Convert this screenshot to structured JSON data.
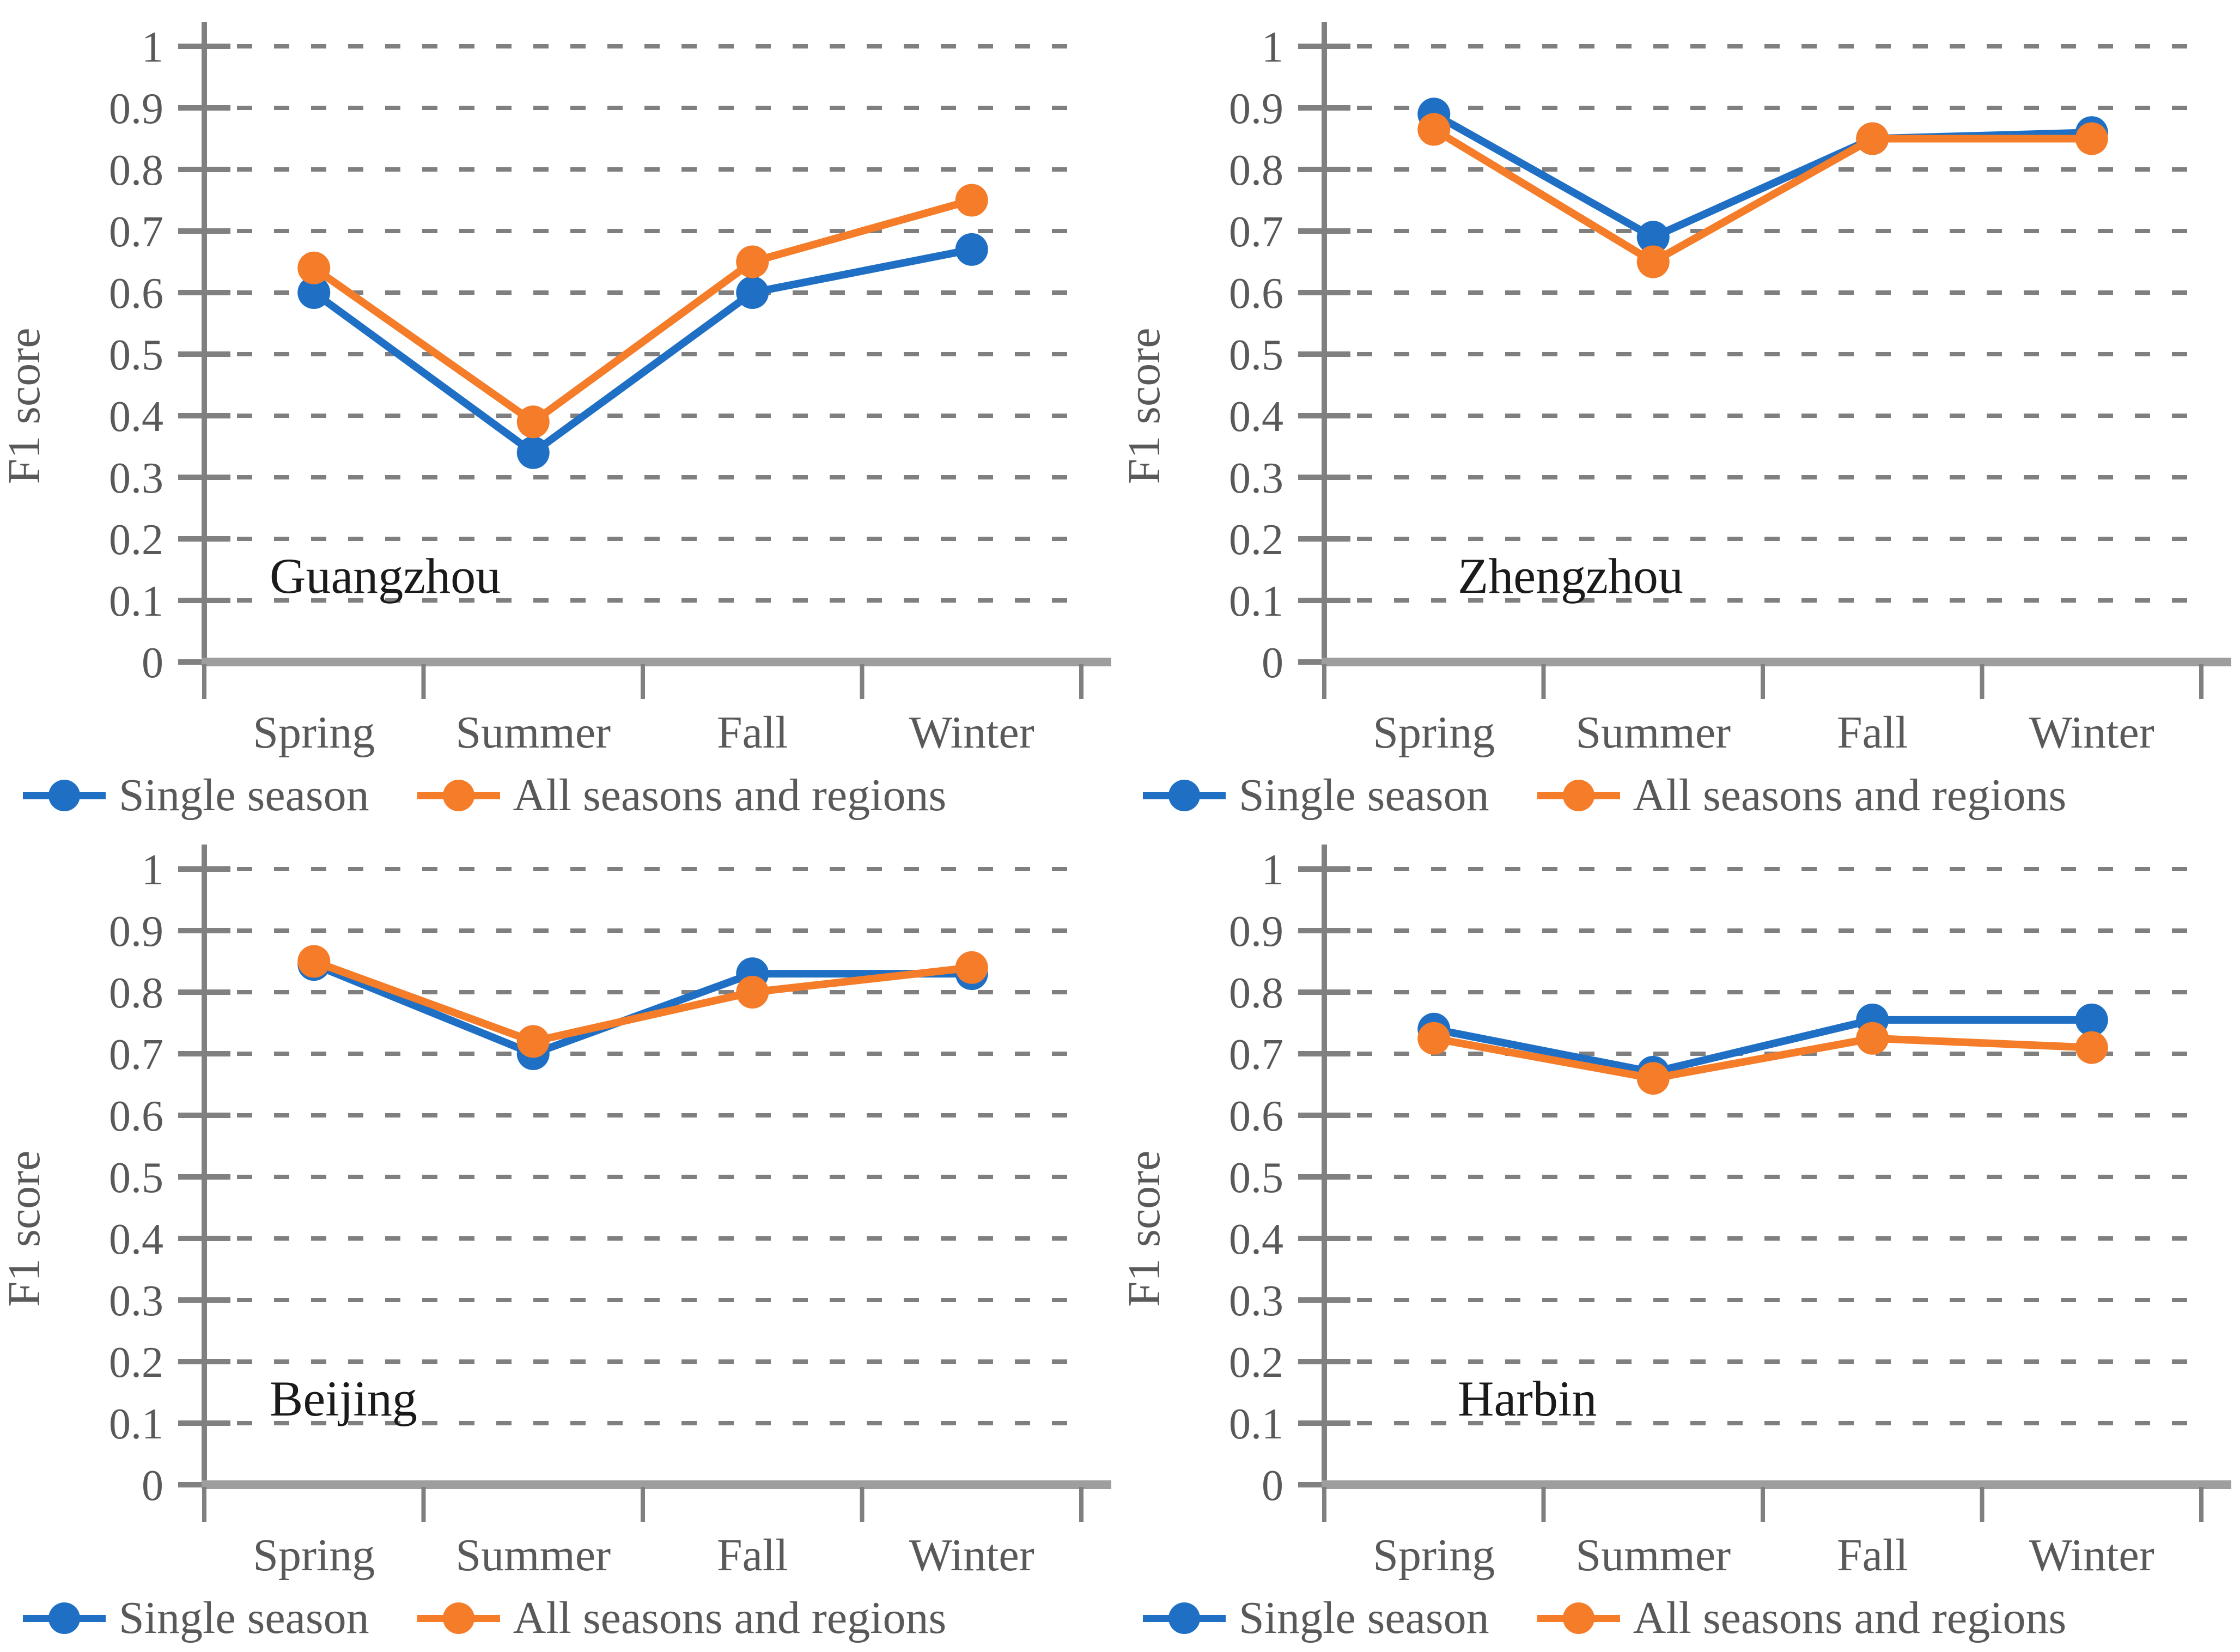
{
  "figure": {
    "background": "#ffffff"
  },
  "style": {
    "series_colors": {
      "blue": "#1F6FC5",
      "orange": "#F57C28"
    },
    "grid_color": "#7F7F7F",
    "axis_color": "#808080",
    "baseline_color": "#9E9E9E",
    "tick_label_color": "#595959",
    "city_label_color": "#1a1a1a"
  },
  "legend": {
    "items": [
      {
        "label": "Single season",
        "color_key": "blue"
      },
      {
        "label": "All seasons and regions",
        "color_key": "orange"
      }
    ]
  },
  "chart_data": [
    {
      "type": "line",
      "title": "Guangzhou",
      "ylabel": "F1 score",
      "ylim": [
        0,
        1
      ],
      "ytick_step": 0.1,
      "grid": "dashed-horizontal",
      "legend_position": "bottom",
      "categories": [
        "Spring",
        "Summer",
        "Fall",
        "Winter"
      ],
      "series": [
        {
          "name": "Single season",
          "color_key": "blue",
          "values": [
            0.6,
            0.34,
            0.6,
            0.67
          ]
        },
        {
          "name": "All seasons and regions",
          "color_key": "orange",
          "values": [
            0.64,
            0.39,
            0.65,
            0.75
          ]
        }
      ],
      "title_x": 495
    },
    {
      "type": "line",
      "title": "Zhengzhou",
      "ylabel": "F1 score",
      "ylim": [
        0,
        1
      ],
      "ytick_step": 0.1,
      "grid": "dashed-horizontal",
      "legend_position": "bottom",
      "categories": [
        "Spring",
        "Summer",
        "Fall",
        "Winter"
      ],
      "series": [
        {
          "name": "Single season",
          "color_key": "blue",
          "values": [
            0.89,
            0.69,
            0.85,
            0.86
          ]
        },
        {
          "name": "All seasons and regions",
          "color_key": "orange",
          "values": [
            0.865,
            0.65,
            0.85,
            0.85
          ]
        }
      ],
      "title_x": 620
    },
    {
      "type": "line",
      "title": "Beijing",
      "ylabel": "F1 score",
      "ylim": [
        0,
        1
      ],
      "ytick_step": 0.1,
      "grid": "dashed-horizontal",
      "legend_position": "bottom",
      "categories": [
        "Spring",
        "Summer",
        "Fall",
        "Winter"
      ],
      "series": [
        {
          "name": "Single season",
          "color_key": "blue",
          "values": [
            0.845,
            0.7,
            0.83,
            0.83
          ]
        },
        {
          "name": "All seasons and regions",
          "color_key": "orange",
          "values": [
            0.85,
            0.72,
            0.8,
            0.84
          ]
        }
      ],
      "title_x": 495
    },
    {
      "type": "line",
      "title": "Harbin",
      "ylabel": "F1 score",
      "ylim": [
        0,
        1
      ],
      "ytick_step": 0.1,
      "grid": "dashed-horizontal",
      "legend_position": "bottom",
      "categories": [
        "Spring",
        "Summer",
        "Fall",
        "Winter"
      ],
      "series": [
        {
          "name": "Single season",
          "color_key": "blue",
          "values": [
            0.74,
            0.67,
            0.755,
            0.755
          ]
        },
        {
          "name": "All seasons and regions",
          "color_key": "orange",
          "values": [
            0.725,
            0.66,
            0.725,
            0.71
          ]
        }
      ],
      "title_x": 620
    }
  ]
}
